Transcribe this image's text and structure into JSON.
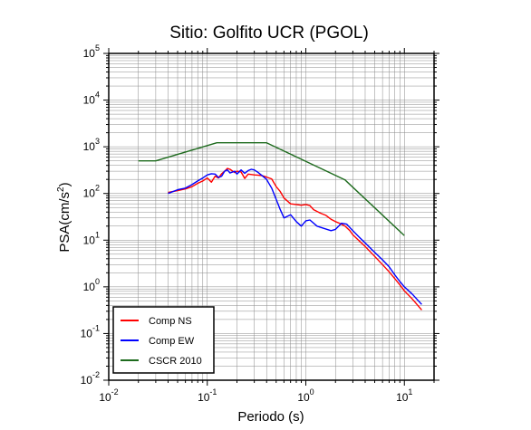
{
  "chart_data": {
    "type": "line",
    "title": "Sitio: Golfito UCR (PGOL)",
    "xlabel": "Periodo (s)",
    "ylabel": {
      "base": "PSA(cm/s",
      "sup": "2",
      "tail": ")"
    },
    "xscale": "log",
    "yscale": "log",
    "xlim": [
      0.01,
      20
    ],
    "ylim": [
      0.01,
      100000
    ],
    "grid": true,
    "legend_position": "bottom-left",
    "x_ticks": [
      {
        "value": 0.01,
        "base": "10",
        "exp": "-2"
      },
      {
        "value": 0.1,
        "base": "10",
        "exp": "-1"
      },
      {
        "value": 1,
        "base": "10",
        "exp": "0"
      },
      {
        "value": 10,
        "base": "10",
        "exp": "1"
      }
    ],
    "y_ticks": [
      {
        "value": 0.01,
        "base": "10",
        "exp": "-2"
      },
      {
        "value": 0.1,
        "base": "10",
        "exp": "-1"
      },
      {
        "value": 1,
        "base": "10",
        "exp": "0"
      },
      {
        "value": 10,
        "base": "10",
        "exp": "1"
      },
      {
        "value": 100,
        "base": "10",
        "exp": "2"
      },
      {
        "value": 1000,
        "base": "10",
        "exp": "3"
      },
      {
        "value": 10000,
        "base": "10",
        "exp": "4"
      },
      {
        "value": 100000,
        "base": "10",
        "exp": "5"
      }
    ],
    "series": [
      {
        "name": "Comp NS",
        "color": "#ff0000",
        "points": [
          [
            0.04,
            105
          ],
          [
            0.05,
            115
          ],
          [
            0.06,
            125
          ],
          [
            0.07,
            140
          ],
          [
            0.08,
            165
          ],
          [
            0.09,
            185
          ],
          [
            0.1,
            215
          ],
          [
            0.11,
            175
          ],
          [
            0.12,
            235
          ],
          [
            0.13,
            215
          ],
          [
            0.14,
            265
          ],
          [
            0.15,
            300
          ],
          [
            0.16,
            345
          ],
          [
            0.17,
            330
          ],
          [
            0.19,
            280
          ],
          [
            0.2,
            300
          ],
          [
            0.22,
            290
          ],
          [
            0.24,
            210
          ],
          [
            0.26,
            260
          ],
          [
            0.3,
            250
          ],
          [
            0.33,
            245
          ],
          [
            0.36,
            240
          ],
          [
            0.4,
            225
          ],
          [
            0.45,
            205
          ],
          [
            0.5,
            140
          ],
          [
            0.55,
            110
          ],
          [
            0.6,
            80
          ],
          [
            0.7,
            60
          ],
          [
            0.8,
            58
          ],
          [
            0.9,
            56
          ],
          [
            1.0,
            58
          ],
          [
            1.1,
            55
          ],
          [
            1.2,
            45
          ],
          [
            1.4,
            38
          ],
          [
            1.6,
            34
          ],
          [
            1.8,
            28
          ],
          [
            2.0,
            25
          ],
          [
            2.2,
            23
          ],
          [
            2.5,
            20
          ],
          [
            2.8,
            16
          ],
          [
            3.0,
            13
          ],
          [
            3.5,
            9.5
          ],
          [
            4.0,
            7.3
          ],
          [
            5.0,
            4.5
          ],
          [
            6.0,
            3.0
          ],
          [
            7.0,
            2.1
          ],
          [
            8.0,
            1.5
          ],
          [
            9.0,
            1.1
          ],
          [
            10.0,
            0.82
          ],
          [
            12.0,
            0.55
          ],
          [
            15.0,
            0.32
          ]
        ]
      },
      {
        "name": "Comp EW",
        "color": "#0000ff",
        "points": [
          [
            0.04,
            100
          ],
          [
            0.05,
            120
          ],
          [
            0.06,
            130
          ],
          [
            0.07,
            155
          ],
          [
            0.08,
            185
          ],
          [
            0.09,
            215
          ],
          [
            0.1,
            250
          ],
          [
            0.11,
            265
          ],
          [
            0.12,
            260
          ],
          [
            0.13,
            220
          ],
          [
            0.14,
            235
          ],
          [
            0.15,
            300
          ],
          [
            0.16,
            320
          ],
          [
            0.17,
            275
          ],
          [
            0.19,
            300
          ],
          [
            0.2,
            260
          ],
          [
            0.22,
            320
          ],
          [
            0.24,
            270
          ],
          [
            0.26,
            310
          ],
          [
            0.28,
            330
          ],
          [
            0.3,
            320
          ],
          [
            0.33,
            280
          ],
          [
            0.36,
            240
          ],
          [
            0.4,
            200
          ],
          [
            0.45,
            130
          ],
          [
            0.5,
            75
          ],
          [
            0.55,
            45
          ],
          [
            0.6,
            30
          ],
          [
            0.7,
            35
          ],
          [
            0.8,
            25
          ],
          [
            0.9,
            20
          ],
          [
            1.0,
            26
          ],
          [
            1.1,
            27
          ],
          [
            1.3,
            20
          ],
          [
            1.5,
            18
          ],
          [
            1.8,
            16
          ],
          [
            2.0,
            17
          ],
          [
            2.3,
            23
          ],
          [
            2.6,
            22
          ],
          [
            3.0,
            16
          ],
          [
            3.5,
            11.5
          ],
          [
            4.0,
            8.7
          ],
          [
            5.0,
            5.5
          ],
          [
            6.0,
            3.8
          ],
          [
            7.0,
            2.7
          ],
          [
            8.0,
            1.8
          ],
          [
            9.0,
            1.3
          ],
          [
            10.0,
            1.0
          ],
          [
            12.0,
            0.7
          ],
          [
            15.0,
            0.42
          ]
        ]
      },
      {
        "name": "CSCR 2010",
        "color": "#1e6b1e",
        "points": [
          [
            0.02,
            500
          ],
          [
            0.03,
            500
          ],
          [
            0.125,
            1220
          ],
          [
            0.4,
            1220
          ],
          [
            2.5,
            195
          ],
          [
            10.0,
            12.5
          ]
        ]
      }
    ]
  }
}
